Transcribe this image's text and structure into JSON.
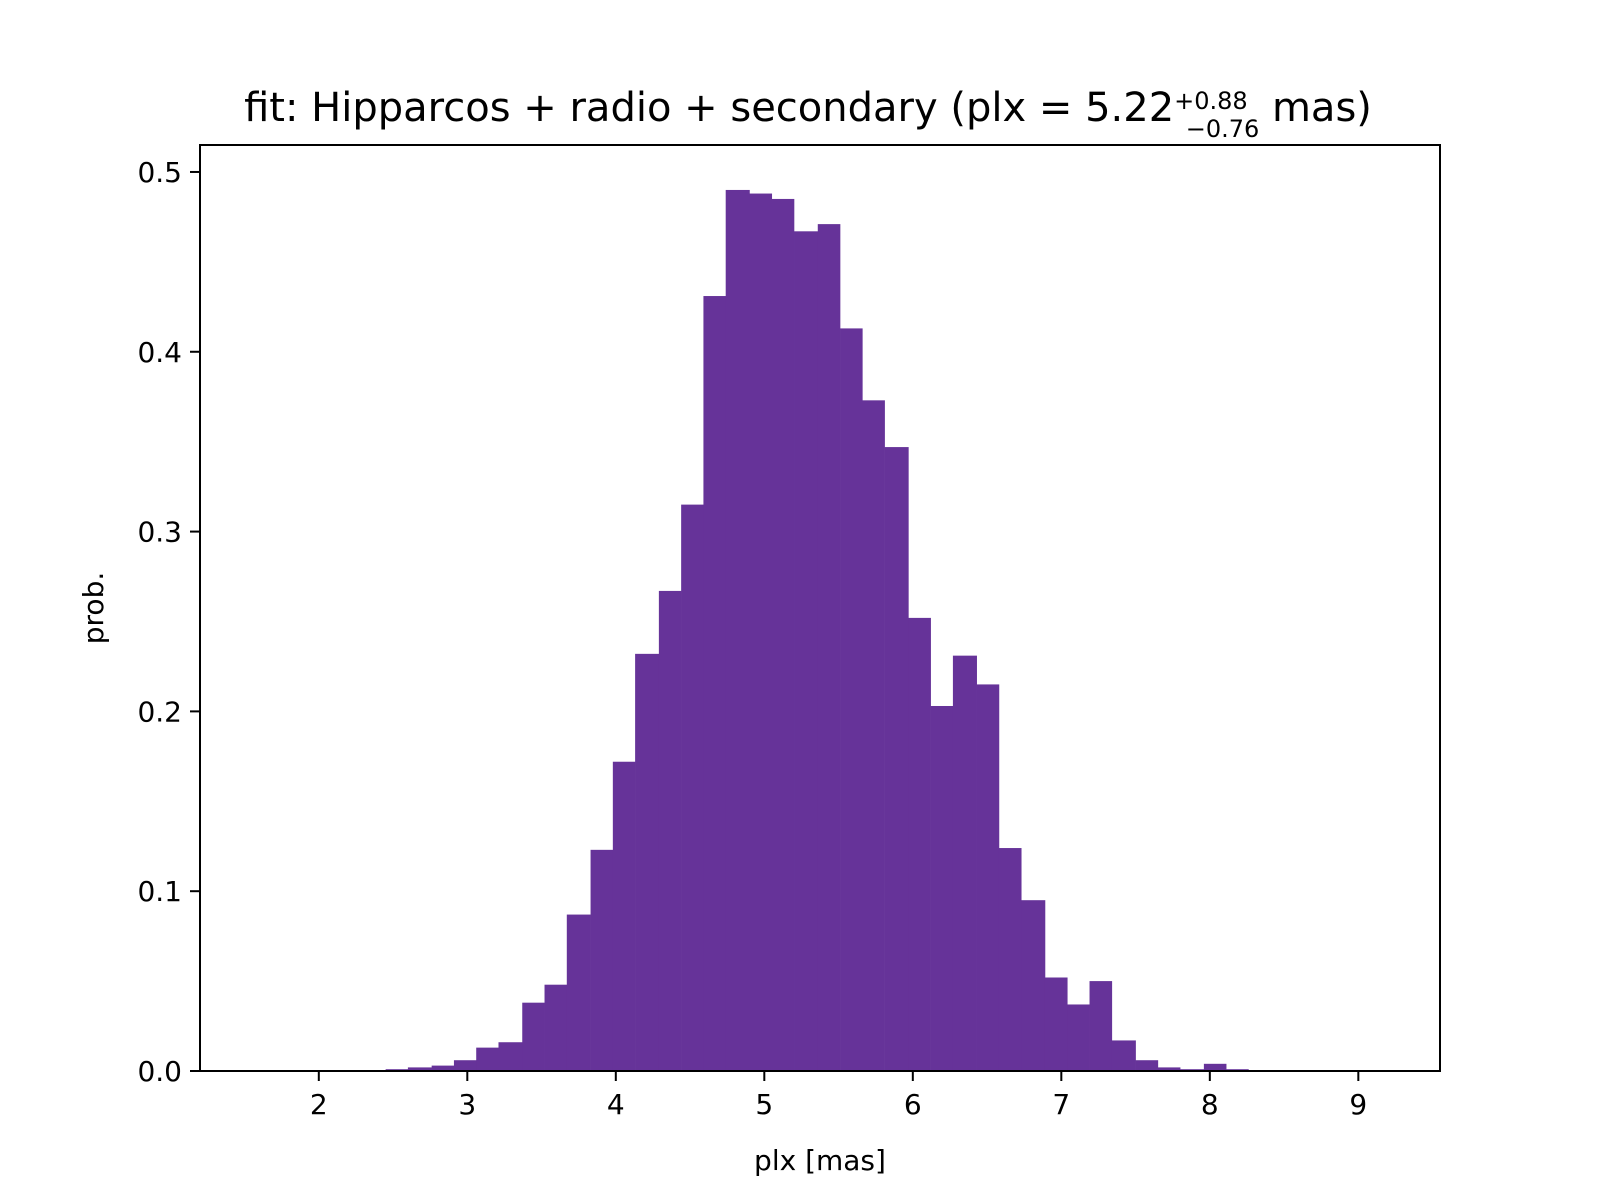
{
  "chart_data": {
    "type": "bar",
    "title": {
      "prefix": "fit: Hipparcos + radio + secondary (plx = 5.22",
      "sup": "+0.88",
      "sub": "−0.76",
      "suffix": " mas)"
    },
    "xlabel": "plx [mas]",
    "ylabel": "prob.",
    "xlim": [
      1.2,
      9.55
    ],
    "ylim": [
      0,
      0.515
    ],
    "xticks": [
      2,
      3,
      4,
      5,
      6,
      7,
      8,
      9
    ],
    "xtick_labels": [
      "2",
      "3",
      "4",
      "5",
      "6",
      "7",
      "8",
      "9"
    ],
    "yticks": [
      0.0,
      0.1,
      0.2,
      0.3,
      0.4,
      0.5
    ],
    "ytick_labels": [
      "0.0",
      "0.1",
      "0.2",
      "0.3",
      "0.4",
      "0.5"
    ],
    "bar_color": "#663399",
    "bin_edges": [
      2.45,
      2.6,
      2.76,
      2.91,
      3.06,
      3.21,
      3.37,
      3.52,
      3.67,
      3.83,
      3.98,
      4.13,
      4.29,
      4.44,
      4.59,
      4.74,
      4.9,
      5.05,
      5.2,
      5.36,
      5.51,
      5.66,
      5.81,
      5.97,
      6.12,
      6.27,
      6.43,
      6.58,
      6.73,
      6.89,
      7.04,
      7.19,
      7.34,
      7.5,
      7.65,
      7.8,
      7.96,
      8.11,
      8.26
    ],
    "values": [
      0.001,
      0.002,
      0.003,
      0.006,
      0.013,
      0.016,
      0.038,
      0.048,
      0.087,
      0.123,
      0.172,
      0.232,
      0.267,
      0.315,
      0.431,
      0.49,
      0.488,
      0.485,
      0.467,
      0.471,
      0.413,
      0.373,
      0.347,
      0.252,
      0.203,
      0.231,
      0.215,
      0.124,
      0.095,
      0.052,
      0.037,
      0.05,
      0.017,
      0.006,
      0.002,
      0.001,
      0.004,
      0.001
    ]
  }
}
